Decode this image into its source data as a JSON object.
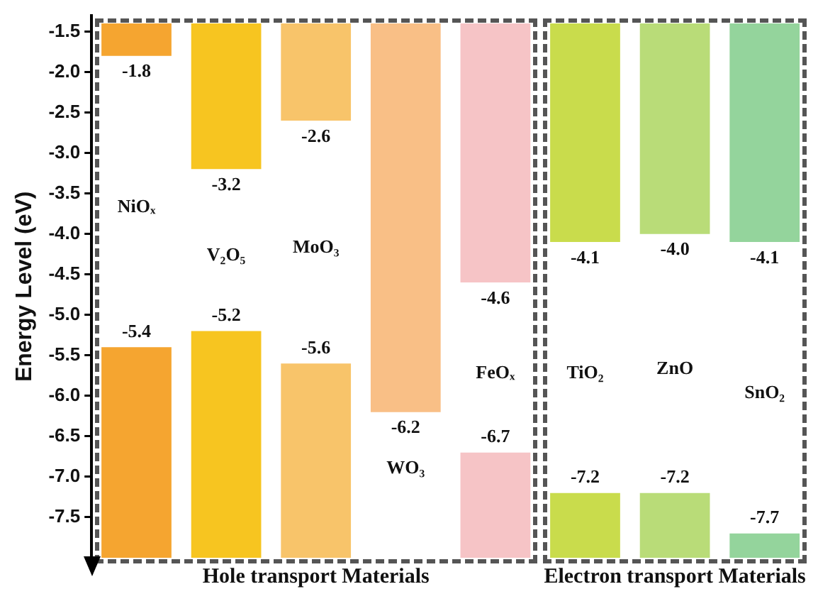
{
  "chart_data": {
    "type": "bar",
    "ylabel": "Energy Level (eV)",
    "categories": [
      "NiOₓ",
      "V₂O₅",
      "MoO₃",
      "WO₃",
      "FeOₓ",
      "TiO₂",
      "ZnO",
      "SnO₂"
    ],
    "series": [
      {
        "colors": [
          "#f5a530",
          "#f7c520",
          "#f8c46a",
          "#f9bf86",
          "#f6c4c6",
          "#c9dc4c",
          "#b9dc78",
          "#94d49c"
        ],
        "base": [
          -1.4,
          -1.4,
          -1.4,
          -1.4,
          -1.4,
          -1.4,
          -1.4,
          -1.4
        ],
        "values": [
          -0.4,
          -1.8,
          -1.2,
          -4.8,
          -3.2,
          -2.7,
          -2.6,
          -2.7
        ],
        "value_labels": [
          "-1.8",
          "-3.2",
          "-2.6",
          "-6.2",
          "-4.6",
          "-4.1",
          "-4.0",
          "-4.1"
        ]
      },
      {
        "colors": [
          "#f5a530",
          "#f7c520",
          "#f8c46a",
          "#f9bf86",
          "#f6c4c6",
          "#c9dc4c",
          "#b9dc78",
          "#94d49c"
        ],
        "base": [
          -8.0,
          -8.0,
          -8.0,
          null,
          -8.0,
          -8.0,
          -8.0,
          -8.0
        ],
        "values": [
          2.6,
          2.8,
          2.4,
          null,
          1.3,
          0.8,
          0.8,
          0.3
        ],
        "value_labels": [
          "-5.4",
          "-5.2",
          "-5.6",
          null,
          "-6.7",
          "-7.2",
          "-7.2",
          "-7.7"
        ]
      }
    ],
    "ylim": [
      -8.0,
      -1.3
    ],
    "yticks": [
      -1.5,
      {
        "value": -2,
        "label": "-2.0"
      },
      -2.5,
      {
        "value": -3,
        "label": "-3.0"
      },
      -3.5,
      {
        "value": -4,
        "label": "-4.0"
      },
      -4.5,
      {
        "value": -5,
        "label": "-5.0"
      },
      -5.5,
      {
        "value": -6,
        "label": "-6.0"
      },
      -6.5,
      {
        "value": -7,
        "label": "-7.0"
      },
      -7.5
    ],
    "tick_labels": "y",
    "grid": false,
    "legend": false,
    "annotations": [
      "Hole transport Materials",
      "Electron transport Materials"
    ]
  }
}
